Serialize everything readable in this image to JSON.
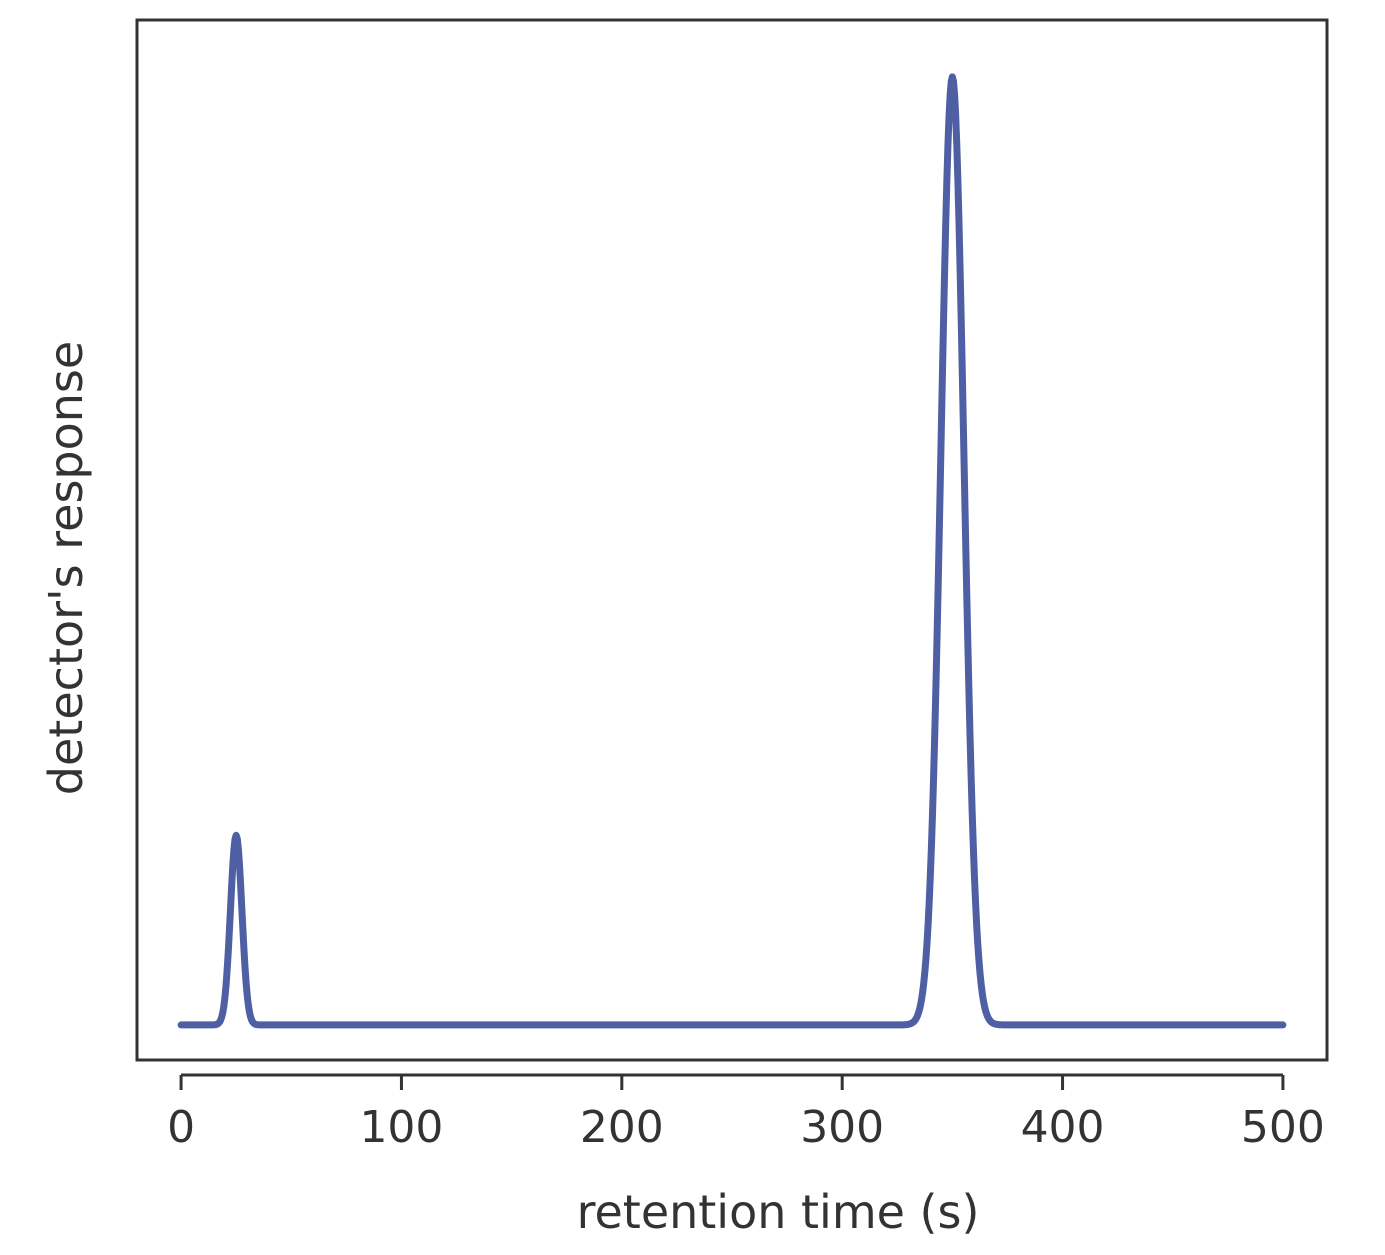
{
  "chart_data": {
    "type": "line",
    "title": "",
    "xlabel": "retention time (s)",
    "ylabel": "detector's response",
    "xlim": [
      -20,
      520
    ],
    "ylim": [
      -0.037,
      1.06
    ],
    "xticks": [
      0,
      100,
      200,
      300,
      400,
      500
    ],
    "xtick_labels": [
      "0",
      "100",
      "200",
      "300",
      "400",
      "500"
    ],
    "yticks_shown": false,
    "grid": false,
    "legend": "none",
    "line_color": "#4f5fa3",
    "series": [
      {
        "peaks": [
          {
            "retention_time": 25,
            "height": 0.2,
            "width_sd": 2.6
          },
          {
            "retention_time": 350,
            "height": 1.0,
            "width_sd": 5.2
          }
        ],
        "x_range": [
          0,
          500
        ]
      }
    ]
  }
}
